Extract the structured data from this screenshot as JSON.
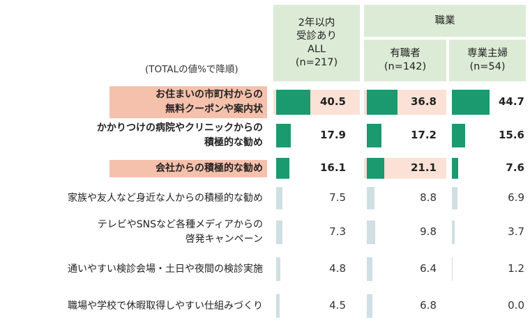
{
  "header": {
    "total_col": [
      "2年以内",
      "受診あり",
      "ALL",
      "(n=217)"
    ],
    "occupation_group": "職業",
    "employed": [
      "有職者",
      "(n=142)"
    ],
    "housewife": [
      "専業主婦",
      "(n=54)"
    ]
  },
  "note": "(TOTALの値%で降順)",
  "colors": {
    "highlight_bar": "#1a9a6e",
    "normal_bar": "#cfdfe3",
    "header_bg": "#dcebd6",
    "label_highlight_bg": "#f6c1ac",
    "cell_highlight_bg": "#fbe1d6"
  },
  "chart_data": {
    "type": "bar",
    "title": "",
    "xlabel": "",
    "ylabel": "",
    "sort_note": "(TOTALの値%で降順)",
    "categories": [
      [
        "お住まいの市町村からの",
        "無料クーポンや案内状"
      ],
      [
        "かかりつけの病院やクリニックからの",
        "積極的な勧め"
      ],
      [
        "会社からの積極的な勧め"
      ],
      [
        "家族や友人など身近な人からの積極的な勧め"
      ],
      [
        "テレビやSNSなど各種メディアからの",
        "啓発キャンペーン"
      ],
      [
        "通いやすい検診会場・土日や夜間の検診実施"
      ],
      [
        "職場や学校で休暇取得しやすい仕組みづくり"
      ]
    ],
    "highlighted": [
      true,
      true,
      true,
      false,
      false,
      false,
      false
    ],
    "label_highlight": [
      true,
      false,
      true,
      false,
      false,
      false,
      false
    ],
    "series": [
      {
        "name": "2年以内受診あり ALL (n=217)",
        "values": [
          40.5,
          17.9,
          16.1,
          7.5,
          7.3,
          4.8,
          4.5
        ],
        "value_labels": [
          "40.5",
          "17.9",
          "16.1",
          "7.5",
          "7.3",
          "4.8",
          "4.5"
        ],
        "cell_highlight": [
          true,
          false,
          false,
          false,
          false,
          false,
          false
        ]
      },
      {
        "name": "有職者 (n=142)",
        "values": [
          36.8,
          17.2,
          21.1,
          8.8,
          9.8,
          6.4,
          6.8
        ],
        "value_labels": [
          "36.8",
          "17.2",
          "21.1",
          "8.8",
          "9.8",
          "6.4",
          "6.8"
        ],
        "cell_highlight": [
          true,
          false,
          true,
          false,
          false,
          false,
          false
        ]
      },
      {
        "name": "専業主婦 (n=54)",
        "values": [
          44.7,
          15.6,
          7.6,
          6.9,
          3.7,
          1.2,
          0.0
        ],
        "value_labels": [
          "44.7",
          "15.6",
          "7.6",
          "6.9",
          "3.7",
          "1.2",
          "0.0"
        ],
        "cell_highlight": [
          false,
          false,
          false,
          false,
          false,
          false,
          false
        ]
      }
    ],
    "xlim": [
      0,
      100
    ]
  }
}
